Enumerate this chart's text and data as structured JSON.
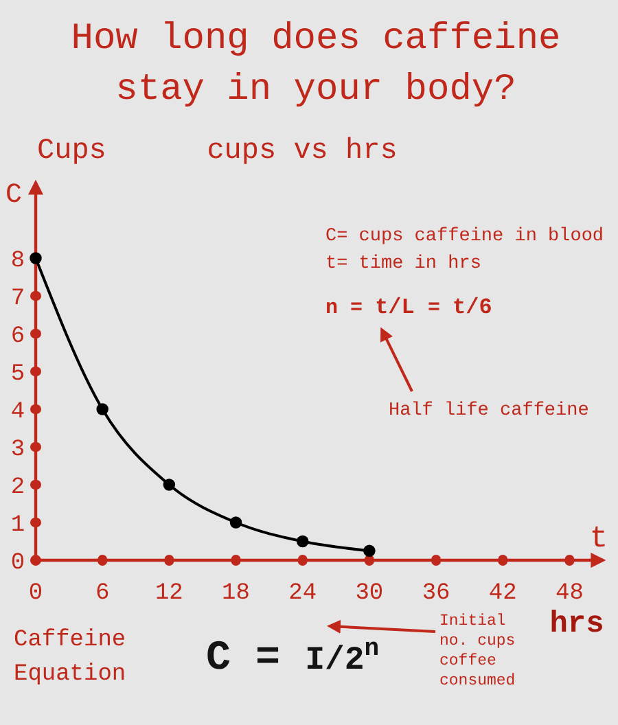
{
  "chart_data": {
    "type": "line",
    "title": "How long does caffeine stay in your body?",
    "subtitle": "cups vs hrs",
    "xlabel": "hrs",
    "ylabel": "Cups",
    "x": [
      0,
      6,
      12,
      18,
      24,
      30
    ],
    "values": [
      8,
      4,
      2,
      1,
      0.5,
      0.25
    ],
    "color": "#000000",
    "xlim": [
      0,
      51
    ],
    "xticks": [
      0,
      6,
      12,
      18,
      24,
      30,
      36,
      42,
      48
    ],
    "ylim": [
      0,
      10
    ],
    "yticks": [
      0,
      1,
      2,
      3,
      4,
      5,
      6,
      7,
      8
    ],
    "marker": "circle",
    "line_style": "solid",
    "annotations": [
      "C",
      "t",
      "C= cups caffeine in blood",
      "t= time in hrs",
      "n = t/L = t/6",
      "Half life caffeine",
      "Caffeine Equation",
      "C = I/2$^{n}$",
      "Initial no. cups coffee consumed"
    ]
  }
}
